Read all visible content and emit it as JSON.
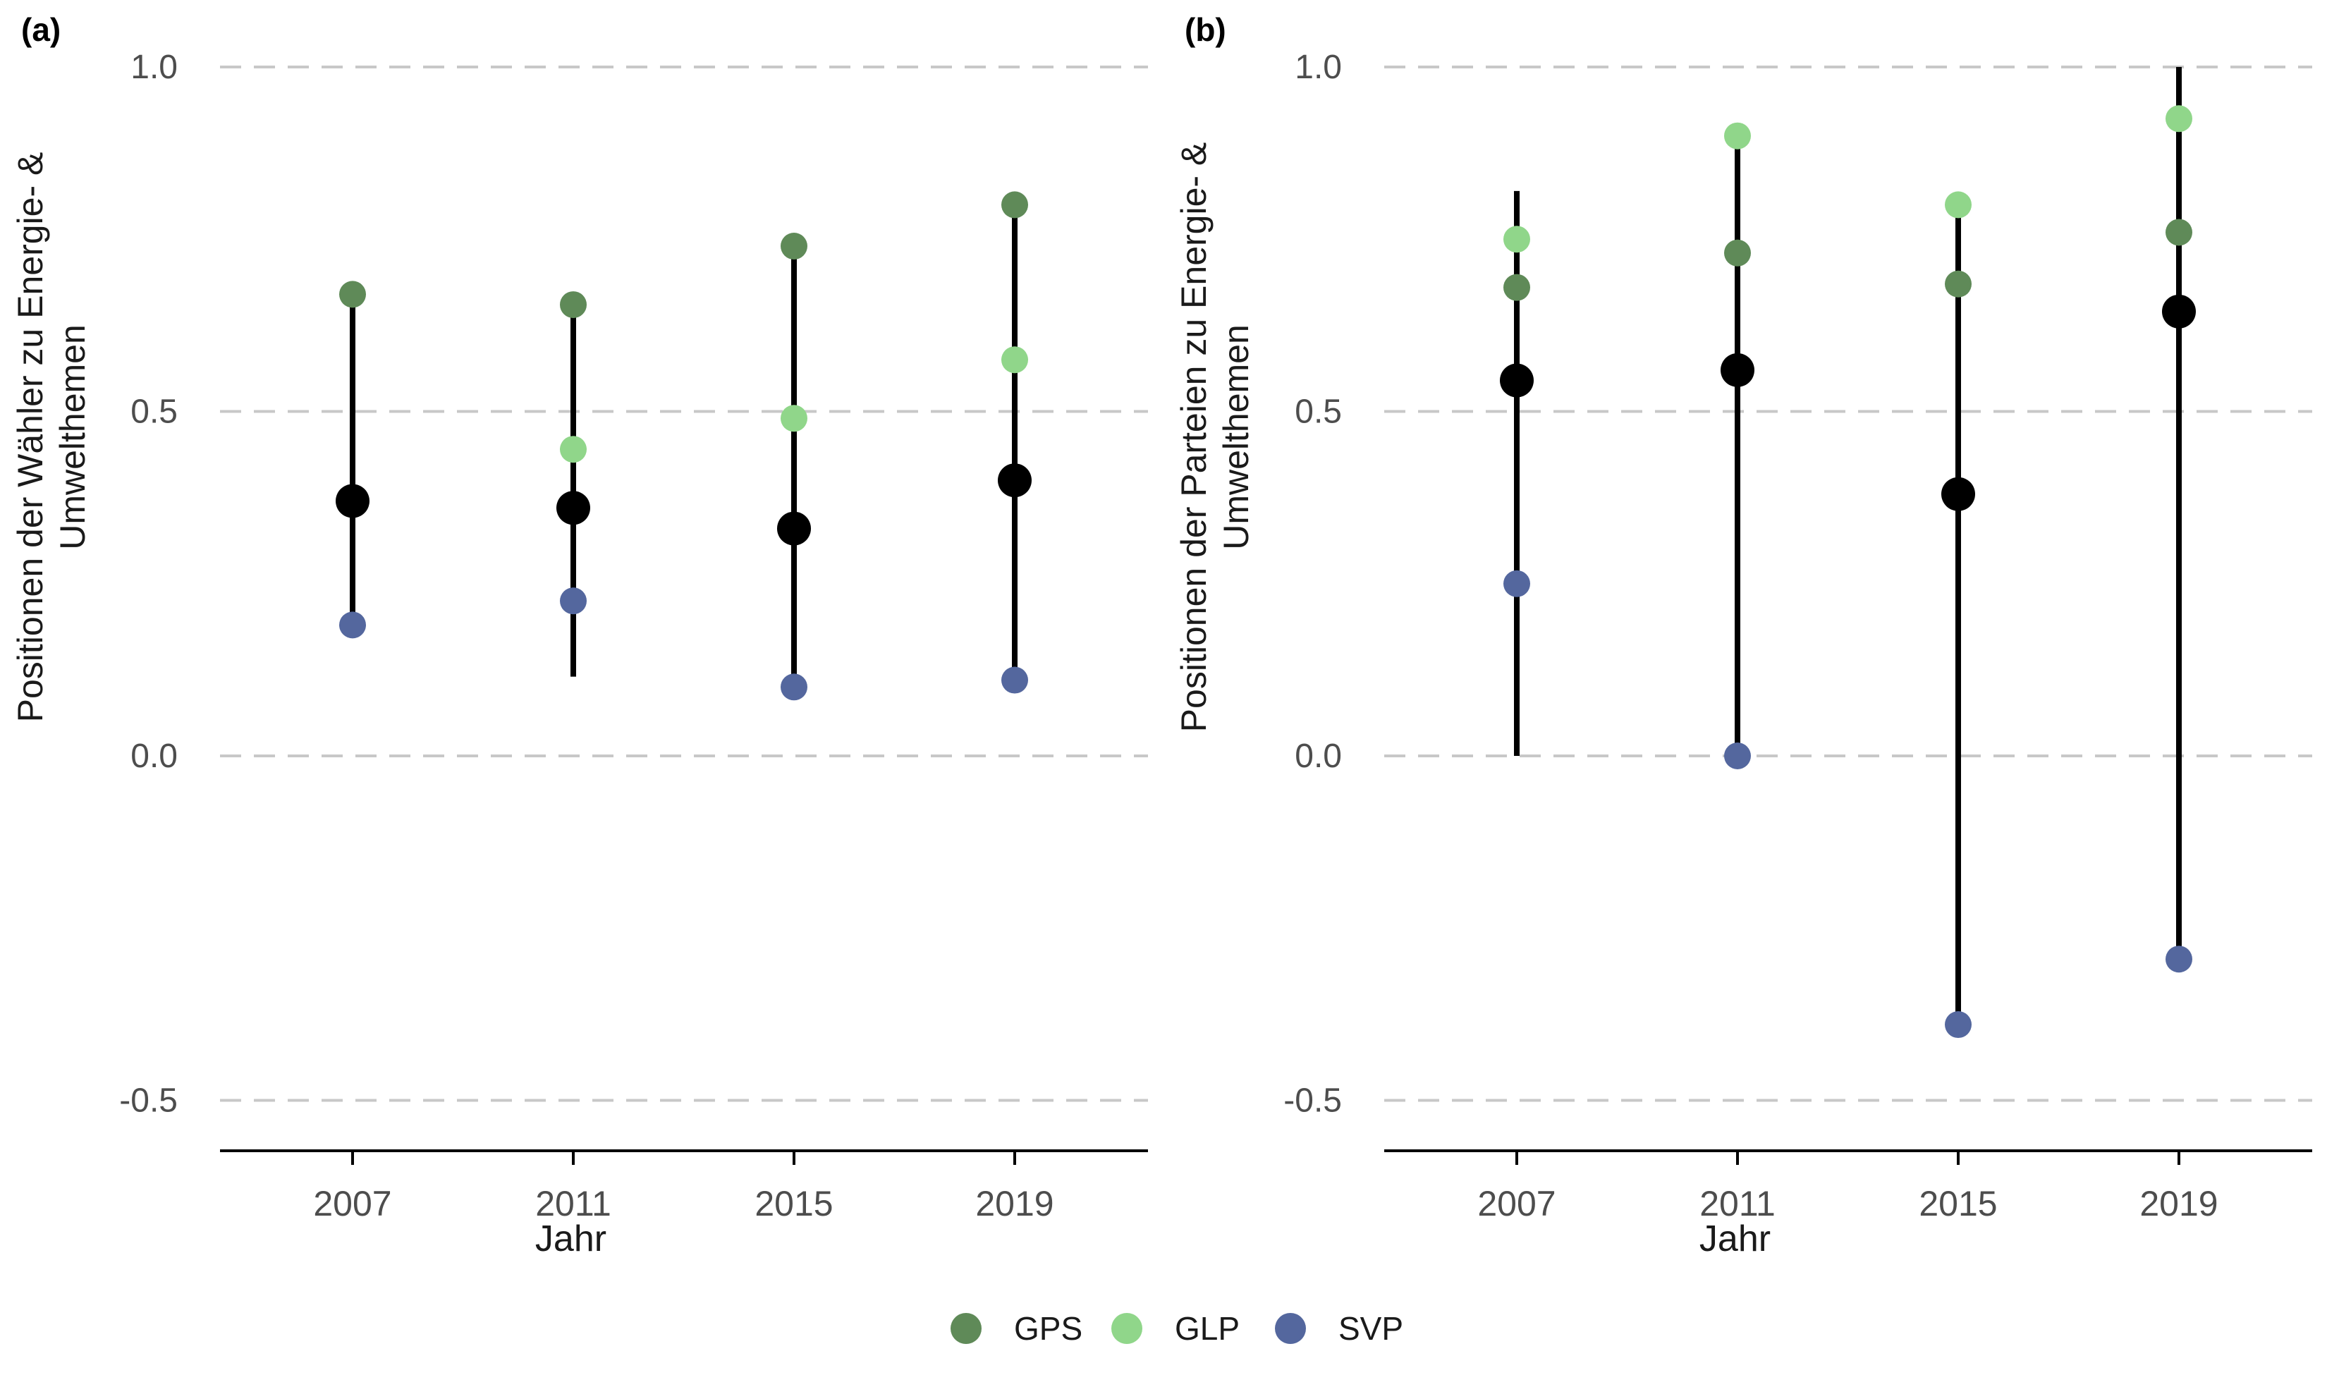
{
  "colors": {
    "GPS": "#5f8a58",
    "GLP": "#90d68a",
    "SVP": "#54679e",
    "mean": "#000000",
    "grid": "#c8c8c8",
    "axis": "#000000"
  },
  "legend": {
    "position": "bottom",
    "items": [
      "GPS",
      "GLP",
      "SVP"
    ]
  },
  "chart_data": [
    {
      "type": "scatter",
      "panel_label": "(a)",
      "xlabel": "Jahr",
      "ylabel": [
        "Positionen der Wähler zu Energie- &",
        "Umwelthemen"
      ],
      "x": [
        "2007",
        "2011",
        "2015",
        "2019"
      ],
      "ylim": [
        -0.57,
        1.0
      ],
      "yticks": [
        -0.5,
        0.0,
        0.5,
        1.0
      ],
      "ytick_labels": [
        "-0.5",
        "0.0",
        "0.5",
        "1.0"
      ],
      "grid": true,
      "range_lines": [
        {
          "x": "2007",
          "low": 0.19,
          "high": 0.67
        },
        {
          "x": "2011",
          "low": 0.115,
          "high": 0.655
        },
        {
          "x": "2015",
          "low": 0.1,
          "high": 0.74
        },
        {
          "x": "2019",
          "low": 0.11,
          "high": 0.8
        }
      ],
      "series": [
        {
          "name": "GPS",
          "values": [
            0.67,
            0.655,
            0.74,
            0.8
          ]
        },
        {
          "name": "GLP",
          "values": [
            null,
            0.445,
            0.49,
            0.575
          ]
        },
        {
          "name": "SVP",
          "values": [
            0.19,
            0.225,
            0.1,
            0.11
          ]
        },
        {
          "values": [
            0.37,
            0.36,
            0.33,
            0.4
          ]
        }
      ]
    },
    {
      "type": "scatter",
      "panel_label": "(b)",
      "xlabel": "Jahr",
      "ylabel": [
        "Positionen der Parteien zu Energie- &",
        "Umwelthemen"
      ],
      "x": [
        "2007",
        "2011",
        "2015",
        "2019"
      ],
      "ylim": [
        -0.57,
        1.0
      ],
      "yticks": [
        -0.5,
        0.0,
        0.5,
        1.0
      ],
      "ytick_labels": [
        "-0.5",
        "0.0",
        "0.5",
        "1.0"
      ],
      "grid": true,
      "range_lines": [
        {
          "x": "2007",
          "low": 0.0,
          "high": 0.82
        },
        {
          "x": "2011",
          "low": 0.0,
          "high": 0.9
        },
        {
          "x": "2015",
          "low": -0.39,
          "high": 0.8
        },
        {
          "x": "2019",
          "low": -0.295,
          "high": 1.0
        }
      ],
      "series": [
        {
          "name": "GPS",
          "values": [
            0.68,
            0.73,
            0.685,
            0.76
          ]
        },
        {
          "name": "GLP",
          "values": [
            0.75,
            0.9,
            0.8,
            0.925
          ]
        },
        {
          "name": "SVP",
          "values": [
            0.25,
            0.0,
            -0.39,
            -0.295
          ]
        },
        {
          "values": [
            0.545,
            0.56,
            0.38,
            0.645
          ]
        }
      ]
    }
  ]
}
